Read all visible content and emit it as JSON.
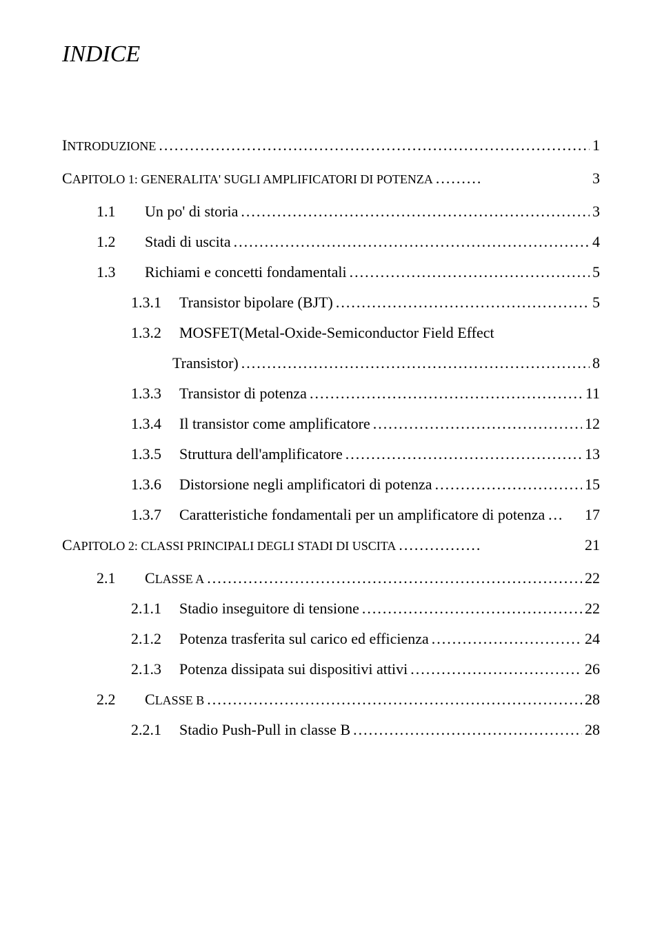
{
  "title": "INDICE",
  "colors": {
    "background": "#ffffff",
    "text": "#000000"
  },
  "typography": {
    "title_fontsize": 34,
    "title_style": "italic",
    "body_fontsize": 22,
    "smallcaps_fontsize": 18,
    "font_family": "Times New Roman"
  },
  "entries": [
    {
      "level": 0,
      "num": "",
      "text_cap": "I",
      "text_small": "NTRODUZIONE",
      "page": "1",
      "mixed": true,
      "dots": "........................................................................................."
    },
    {
      "level": 0,
      "num": "",
      "text_cap": "C",
      "text_small": "APITOLO 1: GENERALITA' SUGLI AMPLIFICATORI DI POTENZA",
      "page": "3",
      "mixed": true,
      "dots": "........."
    },
    {
      "level": 1,
      "num": "1.1",
      "text": "Un po' di storia",
      "page": "3",
      "dots": "..................................................................................."
    },
    {
      "level": 1,
      "num": "1.2",
      "text": "Stadi di uscita",
      "page": "4",
      "dots": "....................................................................................."
    },
    {
      "level": 1,
      "num": "1.3",
      "text": "Richiami e concetti fondamentali",
      "page": "5",
      "dots": "......................................................"
    },
    {
      "level": 2,
      "num": "1.3.1",
      "text": "Transistor bipolare (BJT)",
      "page": "5",
      "dots": "........................................................"
    },
    {
      "level": 2,
      "num": "1.3.2",
      "text": "MOSFET(Metal-Oxide-Semiconductor Field Effect",
      "page": "",
      "noleader": true
    },
    {
      "level": 3,
      "num": "",
      "text": "Transistor)",
      "page": "8",
      "dots": ".........................................................................."
    },
    {
      "level": 2,
      "num": "1.3.3",
      "text": "Transistor di potenza",
      "page": "11",
      "dots": "............................................................."
    },
    {
      "level": 2,
      "num": "1.3.4",
      "text": "Il transistor come amplificatore",
      "page": "12",
      "dots": "............................................."
    },
    {
      "level": 2,
      "num": "1.3.5",
      "text": "Struttura dell'amplificatore",
      "page": "13",
      "dots": "...................................................."
    },
    {
      "level": 2,
      "num": "1.3.6",
      "text": "Distorsione negli amplificatori di potenza",
      "page": "15",
      "dots": ".............................."
    },
    {
      "level": 2,
      "num": "1.3.7",
      "text": "Caratteristiche fondamentali per un amplificatore di potenza",
      "page": "17",
      "dots": "…"
    },
    {
      "level": 0,
      "num": "",
      "text_cap": "C",
      "text_small": "APITOLO 2: CLASSI PRINCIPALI DEGLI STADI DI USCITA",
      "page": "21",
      "mixed": true,
      "dots": "................"
    },
    {
      "level": 1,
      "num": "2.1",
      "text_cap": "C",
      "text_small": "LASSE A",
      "page": "22",
      "mixed": true,
      "dots": ".............................................................................................."
    },
    {
      "level": 2,
      "num": "2.1.1",
      "text": "Stadio inseguitore di tensione",
      "page": "22",
      "dots": "................................................"
    },
    {
      "level": 2,
      "num": "2.1.2",
      "text": "Potenza trasferita sul carico ed efficienza",
      "page": "24",
      "dots": "..............................."
    },
    {
      "level": 2,
      "num": "2.1.3",
      "text": "Potenza dissipata sui dispositivi attivi",
      "page": "26",
      "dots": "...................................."
    },
    {
      "level": 1,
      "num": "2.2",
      "text_cap": "C",
      "text_small": "LASSE B",
      "page": "28",
      "mixed": true,
      "dots": ".............................................................................................."
    },
    {
      "level": 2,
      "num": "2.2.1",
      "text": "Stadio Push-Pull in classe B",
      "page": "28",
      "dots": ".................................................."
    }
  ]
}
